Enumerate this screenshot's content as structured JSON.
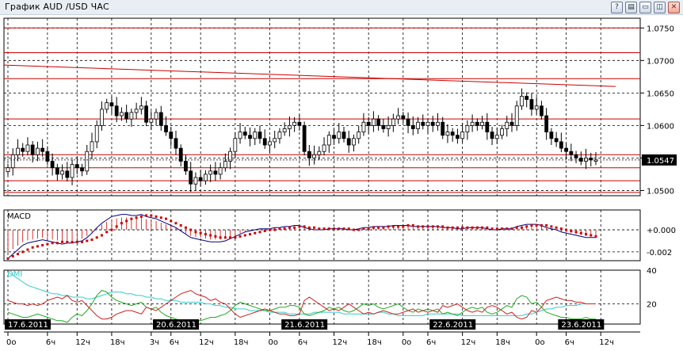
{
  "window": {
    "title": "График AUD /USD  ЧАС",
    "buttons": [
      {
        "name": "help-button",
        "glyph": "?"
      },
      {
        "name": "settings-button",
        "glyph": "▤"
      },
      {
        "name": "minimize-button",
        "glyph": "▭"
      },
      {
        "name": "maximize-button",
        "glyph": "◫"
      },
      {
        "name": "close-button",
        "glyph": "✕"
      }
    ]
  },
  "colors": {
    "grid": "#000000",
    "horizontal_lines": "#cc0000",
    "trendline": "#cc0000",
    "candles": "#000000",
    "macd_line": "#000080",
    "macd_signal": "#cc0000",
    "dmi_adx": "#33cccc",
    "dmi_plus": "#22aa22",
    "dmi_minus": "#cc2222",
    "indicator_label_macd": "#000000",
    "indicator_label_dmi": "#33cccc"
  },
  "chart_data": [
    {
      "type": "candlestick",
      "title": "",
      "price_axis": {
        "ticks": [
          "1.0750",
          "1.0700",
          "1.0650",
          "1.0600",
          "1.0550",
          "1.0500"
        ],
        "ylim": [
          1.0492,
          1.0765
        ]
      },
      "current_price": "1.0547",
      "horizontal_levels": [
        1.075,
        1.0712,
        1.0672,
        1.061,
        1.0555,
        1.0535,
        1.0515,
        1.0497
      ],
      "trendline": {
        "from": {
          "x": 0,
          "y": 1.0693
        },
        "to": {
          "x": 123,
          "y": 1.066
        }
      },
      "closes": [
        1.0535,
        1.0555,
        1.0565,
        1.056,
        1.057,
        1.0555,
        1.0565,
        1.056,
        1.0545,
        1.0535,
        1.0525,
        1.053,
        1.052,
        1.054,
        1.0535,
        1.053,
        1.056,
        1.0575,
        1.06,
        1.0625,
        1.0635,
        1.063,
        1.0615,
        1.062,
        1.061,
        1.062,
        1.0625,
        1.063,
        1.0605,
        1.061,
        1.062,
        1.06,
        1.059,
        1.058,
        1.0565,
        1.0545,
        1.053,
        1.051,
        1.052,
        1.0515,
        1.0525,
        1.053,
        1.0525,
        1.0535,
        1.0545,
        1.056,
        1.058,
        1.059,
        1.0585,
        1.058,
        1.059,
        1.058,
        1.057,
        1.0575,
        1.058,
        1.059,
        1.0595,
        1.06,
        1.0605,
        1.06,
        1.056,
        1.055,
        1.0555,
        1.056,
        1.057,
        1.0585,
        1.058,
        1.059,
        1.058,
        1.057,
        1.058,
        1.059,
        1.0605,
        1.06,
        1.061,
        1.06,
        1.0595,
        1.06,
        1.061,
        1.0615,
        1.061,
        1.06,
        1.0595,
        1.0605,
        1.06,
        1.0605,
        1.06,
        1.0605,
        1.0585,
        1.059,
        1.0585,
        1.058,
        1.059,
        1.06,
        1.0605,
        1.06,
        1.0605,
        1.059,
        1.058,
        1.0585,
        1.0595,
        1.0605,
        1.06,
        1.063,
        1.0645,
        1.064,
        1.0625,
        1.063,
        1.0615,
        1.059,
        1.058,
        1.0575,
        1.0565,
        1.056,
        1.0555,
        1.055,
        1.0545,
        1.055,
        1.0547,
        1.0547
      ]
    },
    {
      "type": "line",
      "title": "MACD",
      "y_ticks": [
        "+0.000",
        "-0.002"
      ],
      "ylim": [
        -0.0028,
        0.0018
      ],
      "series": [
        {
          "role": "macd_line",
          "values": [
            -0.0026,
            -0.0022,
            -0.0018,
            -0.0014,
            -0.0012,
            -0.0011,
            -0.001,
            -0.0009,
            -0.001,
            -0.0011,
            -0.0012,
            -0.0013,
            -0.0012,
            -0.0012,
            -0.0011,
            -0.001,
            -0.0007,
            -0.0003,
            0.0002,
            0.0006,
            0.0009,
            0.0012,
            0.0013,
            0.0014,
            0.0014,
            0.0013,
            0.0013,
            0.0014,
            0.0012,
            0.0011,
            0.001,
            0.0008,
            0.0006,
            0.0004,
            0.0002,
            -0.0001,
            -0.0004,
            -0.0007,
            -0.0008,
            -0.0009,
            -0.001,
            -0.0011,
            -0.0011,
            -0.0011,
            -0.001,
            -0.0008,
            -0.0006,
            -0.0004,
            -0.0002,
            -0.0001,
            0.0,
            0.0001,
            0.0001,
            0.0001,
            0.0002,
            0.0002,
            0.0003,
            0.0003,
            0.0004,
            0.0004,
            0.0002,
            0.0001,
            0.0,
            0.0,
            0.0,
            0.0001,
            0.0001,
            0.0001,
            0.0001,
            0.0,
            0.0,
            0.0001,
            0.0002,
            0.0002,
            0.0003,
            0.0003,
            0.0003,
            0.0003,
            0.0004,
            0.0004,
            0.0004,
            0.0004,
            0.0003,
            0.0003,
            0.0003,
            0.0003,
            0.0003,
            0.0003,
            0.0002,
            0.0002,
            0.0002,
            0.0001,
            0.0001,
            0.0002,
            0.0002,
            0.0002,
            0.0002,
            0.0001,
            0.0,
            0.0,
            0.0001,
            0.0001,
            0.0001,
            0.0003,
            0.0004,
            0.0005,
            0.0005,
            0.0005,
            0.0004,
            0.0002,
            0.0001,
            0.0,
            -0.0002,
            -0.0003,
            -0.0004,
            -0.0005,
            -0.0006,
            -0.0007,
            -0.0007,
            -0.0007
          ]
        },
        {
          "role": "signal_dots",
          "values": [
            -0.0026,
            -0.0024,
            -0.0022,
            -0.002,
            -0.0018,
            -0.0016,
            -0.0015,
            -0.0014,
            -0.0013,
            -0.0012,
            -0.0012,
            -0.0011,
            -0.0011,
            -0.0011,
            -0.0011,
            -0.0011,
            -0.001,
            -0.0009,
            -0.0007,
            -0.0005,
            -0.0002,
            0.0,
            0.0003,
            0.0006,
            0.0008,
            0.001,
            0.0011,
            0.0012,
            0.0013,
            0.0013,
            0.0012,
            0.0011,
            0.001,
            0.0008,
            0.0006,
            0.0004,
            0.0002,
            0.0,
            -0.0002,
            -0.0003,
            -0.0004,
            -0.0005,
            -0.0006,
            -0.0007,
            -0.0007,
            -0.0007,
            -0.0007,
            -0.0006,
            -0.0005,
            -0.0004,
            -0.0003,
            -0.0002,
            -0.0001,
            0.0,
            0.0,
            0.0001,
            0.0001,
            0.0002,
            0.0002,
            0.0003,
            0.0003,
            0.0002,
            0.0002,
            0.0001,
            0.0001,
            0.0001,
            0.0001,
            0.0001,
            0.0001,
            0.0001,
            0.0,
            0.0,
            0.0001,
            0.0001,
            0.0002,
            0.0002,
            0.0002,
            0.0003,
            0.0003,
            0.0003,
            0.0003,
            0.0004,
            0.0004,
            0.0003,
            0.0003,
            0.0003,
            0.0003,
            0.0003,
            0.0003,
            0.0002,
            0.0002,
            0.0002,
            0.0002,
            0.0002,
            0.0002,
            0.0002,
            0.0002,
            0.0002,
            0.0001,
            0.0001,
            0.0001,
            0.0001,
            0.0001,
            0.0002,
            0.0002,
            0.0003,
            0.0004,
            0.0004,
            0.0004,
            0.0004,
            0.0003,
            0.0002,
            0.0001,
            0.0,
            -0.0001,
            -0.0002,
            -0.0003,
            -0.0004,
            -0.0005,
            -0.0006
          ]
        }
      ]
    },
    {
      "type": "line",
      "title": "DMI",
      "y_ticks": [
        "40",
        "20"
      ],
      "ylim": [
        8,
        40
      ],
      "series": [
        {
          "role": "adx",
          "values": [
            39,
            37,
            35,
            33,
            31,
            30,
            29,
            28,
            27,
            26,
            26,
            25,
            25,
            24,
            24,
            24,
            23,
            23,
            24,
            25,
            26,
            27,
            27,
            27,
            26,
            26,
            25,
            25,
            24,
            24,
            23,
            23,
            22,
            22,
            22,
            21,
            21,
            21,
            21,
            21,
            20,
            20,
            19,
            19,
            18,
            18,
            17,
            17,
            17,
            16,
            16,
            16,
            16,
            15,
            15,
            15,
            15,
            14,
            14,
            14,
            14,
            14,
            15,
            15,
            15,
            15,
            15,
            15,
            14,
            14,
            14,
            14,
            14,
            14,
            14,
            15,
            15,
            14,
            14,
            13,
            13,
            13,
            13,
            13,
            13,
            14,
            14,
            14,
            14,
            14,
            14,
            14,
            13,
            13,
            13,
            13,
            13,
            13,
            13,
            13,
            13,
            13,
            13,
            13,
            13,
            14,
            14,
            15,
            16,
            17,
            17,
            18,
            18,
            19,
            19,
            19,
            20,
            20,
            20,
            20
          ]
        },
        {
          "role": "plus_di",
          "values": [
            15,
            14,
            13,
            12,
            12,
            13,
            14,
            13,
            12,
            11,
            10,
            10,
            9,
            12,
            14,
            13,
            16,
            20,
            25,
            28,
            27,
            24,
            22,
            21,
            20,
            19,
            20,
            21,
            18,
            17,
            18,
            15,
            13,
            12,
            11,
            10,
            10,
            9,
            10,
            10,
            11,
            12,
            12,
            13,
            14,
            16,
            19,
            21,
            20,
            19,
            18,
            17,
            16,
            16,
            17,
            18,
            18,
            19,
            19,
            18,
            14,
            13,
            14,
            15,
            16,
            18,
            17,
            18,
            16,
            15,
            16,
            18,
            20,
            19,
            20,
            18,
            17,
            18,
            19,
            20,
            18,
            16,
            15,
            17,
            16,
            17,
            16,
            17,
            14,
            15,
            14,
            13,
            15,
            17,
            18,
            17,
            18,
            15,
            14,
            15,
            17,
            19,
            18,
            23,
            25,
            24,
            20,
            21,
            18,
            15,
            14,
            13,
            12,
            12,
            11,
            11,
            11,
            12,
            11,
            11
          ]
        },
        {
          "role": "minus_di",
          "values": [
            22,
            21,
            20,
            20,
            19,
            20,
            19,
            20,
            22,
            23,
            24,
            23,
            25,
            22,
            21,
            22,
            19,
            16,
            13,
            11,
            11,
            12,
            14,
            15,
            16,
            16,
            15,
            14,
            18,
            17,
            16,
            18,
            20,
            22,
            24,
            26,
            27,
            28,
            26,
            25,
            24,
            22,
            23,
            21,
            20,
            17,
            14,
            12,
            13,
            14,
            15,
            16,
            17,
            16,
            15,
            14,
            14,
            13,
            13,
            14,
            22,
            24,
            22,
            20,
            18,
            16,
            17,
            16,
            18,
            20,
            18,
            16,
            14,
            15,
            14,
            15,
            16,
            15,
            14,
            14,
            15,
            16,
            17,
            15,
            16,
            15,
            16,
            15,
            19,
            18,
            19,
            20,
            18,
            16,
            15,
            16,
            15,
            18,
            19,
            18,
            16,
            14,
            15,
            12,
            11,
            12,
            16,
            15,
            18,
            22,
            23,
            24,
            23,
            22,
            22,
            21,
            21,
            20,
            20,
            20
          ]
        }
      ]
    }
  ],
  "date_labels": [
    {
      "text": "17.6.2011",
      "index": 0
    },
    {
      "text": "20.6.2011",
      "index": 30
    },
    {
      "text": "21.6.2011",
      "index": 56
    },
    {
      "text": "22.6.2011",
      "index": 86
    },
    {
      "text": "23.6.2011",
      "index": 112
    }
  ],
  "time_labels": [
    {
      "text": "0o",
      "index": 0
    },
    {
      "text": "6ч",
      "index": 8
    },
    {
      "text": "12ч",
      "index": 14
    },
    {
      "text": "18ч",
      "index": 21
    },
    {
      "text": "3ч",
      "index": 29
    },
    {
      "text": "6ч",
      "index": 33
    },
    {
      "text": "12ч",
      "index": 39
    },
    {
      "text": "18ч",
      "index": 46
    },
    {
      "text": "0o",
      "index": 53
    },
    {
      "text": "6ч",
      "index": 59
    },
    {
      "text": "12ч",
      "index": 66
    },
    {
      "text": "18ч",
      "index": 73
    },
    {
      "text": "0o",
      "index": 80
    },
    {
      "text": "6ч",
      "index": 85
    },
    {
      "text": "12ч",
      "index": 92
    },
    {
      "text": "18ч",
      "index": 99
    },
    {
      "text": "0o",
      "index": 107
    },
    {
      "text": "6ч",
      "index": 113
    },
    {
      "text": "12ч",
      "index": 120
    }
  ]
}
